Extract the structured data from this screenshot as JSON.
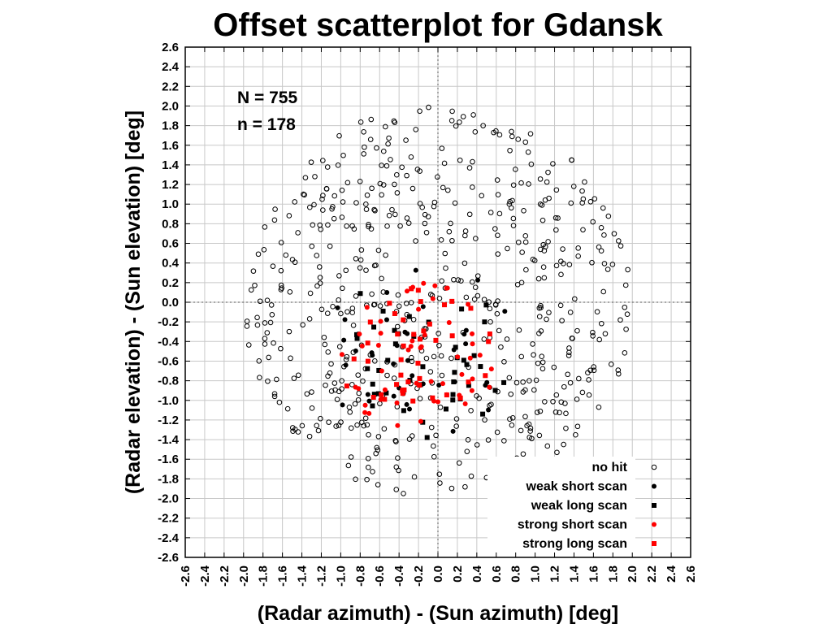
{
  "chart_data": {
    "type": "scatter",
    "title": "Offset scatterplot for Gdansk",
    "xlabel": "(Radar azimuth) - (Sun azimuth) [deg]",
    "ylabel": "(Radar elevation) - (Sun elevation) [deg]",
    "xlim": [
      -2.6,
      2.6
    ],
    "ylim": [
      -2.6,
      2.6
    ],
    "ticks": [
      "-2.6",
      "-2.4",
      "-2.2",
      "-2.0",
      "-1.8",
      "-1.6",
      "-1.4",
      "-1.2",
      "-1.0",
      "-0.8",
      "-0.6",
      "-0.4",
      "-0.2",
      "0.0",
      "0.2",
      "0.4",
      "0.6",
      "0.8",
      "1.0",
      "1.2",
      "1.4",
      "1.6",
      "1.8",
      "2.0",
      "2.2",
      "2.4",
      "2.6"
    ],
    "grid": true,
    "annotations": [
      "N = 755",
      "n = 178"
    ],
    "legend_position": "bottom-right",
    "series": [
      {
        "name": "no hit",
        "marker": "open-circle",
        "color": "#000000",
        "count": 577,
        "seed": 11,
        "center": [
          0.0,
          0.0
        ],
        "radius": 2.0
      },
      {
        "name": "weak short scan",
        "marker": "filled-circle",
        "color": "#000000",
        "count": 38,
        "seed": 23,
        "center": [
          -0.2,
          -0.55
        ],
        "radius": 1.0
      },
      {
        "name": "weak long scan",
        "marker": "filled-square",
        "color": "#000000",
        "count": 44,
        "seed": 37,
        "center": [
          -0.2,
          -0.55
        ],
        "radius": 1.0
      },
      {
        "name": "strong short scan",
        "marker": "filled-circle",
        "color": "#ff0000",
        "count": 52,
        "seed": 41,
        "center": [
          -0.2,
          -0.55
        ],
        "radius": 0.8
      },
      {
        "name": "strong long scan",
        "marker": "filled-square",
        "color": "#ff0000",
        "count": 44,
        "seed": 53,
        "center": [
          -0.2,
          -0.55
        ],
        "radius": 0.8
      }
    ]
  }
}
